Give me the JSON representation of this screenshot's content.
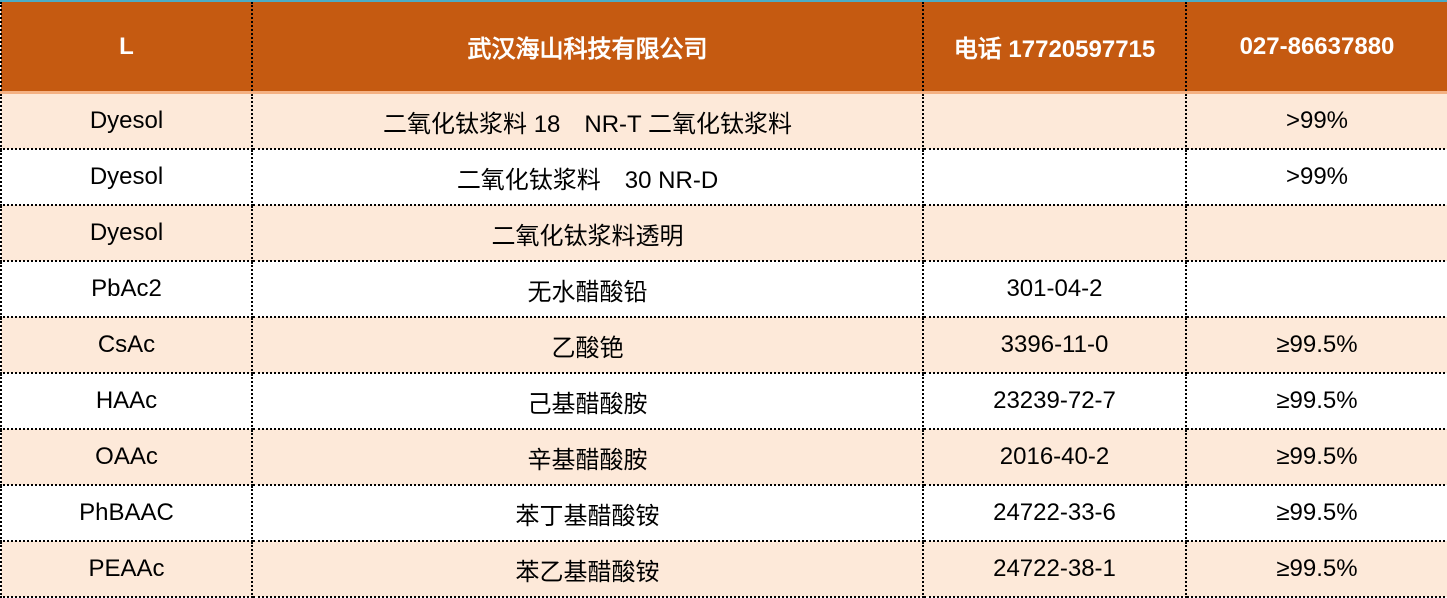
{
  "colors": {
    "header_bg": "#C55A11",
    "row_alt_bg": "#FDE9D9",
    "top_line": "#4BACC6"
  },
  "header": [
    "L",
    "武汉海山科技有限公司",
    "电话 17720597715",
    "027-86637880"
  ],
  "rows": [
    [
      "Dyesol",
      "二氧化钛浆料 18　NR-T  二氧化钛浆料",
      "",
      ">99%"
    ],
    [
      "Dyesol",
      "二氧化钛浆料　30 NR-D",
      "",
      ">99%"
    ],
    [
      "Dyesol",
      "二氧化钛浆料透明",
      "",
      ""
    ],
    [
      "PbAc2",
      "无水醋酸铅",
      "301-04-2",
      ""
    ],
    [
      "CsAc",
      "乙酸铯",
      "3396-11-0",
      "≥99.5%"
    ],
    [
      "HAAc",
      "己基醋酸胺",
      "23239-72-7",
      "≥99.5%"
    ],
    [
      "OAAc",
      "辛基醋酸胺",
      "2016-40-2",
      "≥99.5%"
    ],
    [
      "PhBAAC",
      "苯丁基醋酸铵",
      "24722-33-6",
      "≥99.5%"
    ],
    [
      "PEAAc",
      "苯乙基醋酸铵",
      "24722-38-1",
      "≥99.5%"
    ]
  ]
}
